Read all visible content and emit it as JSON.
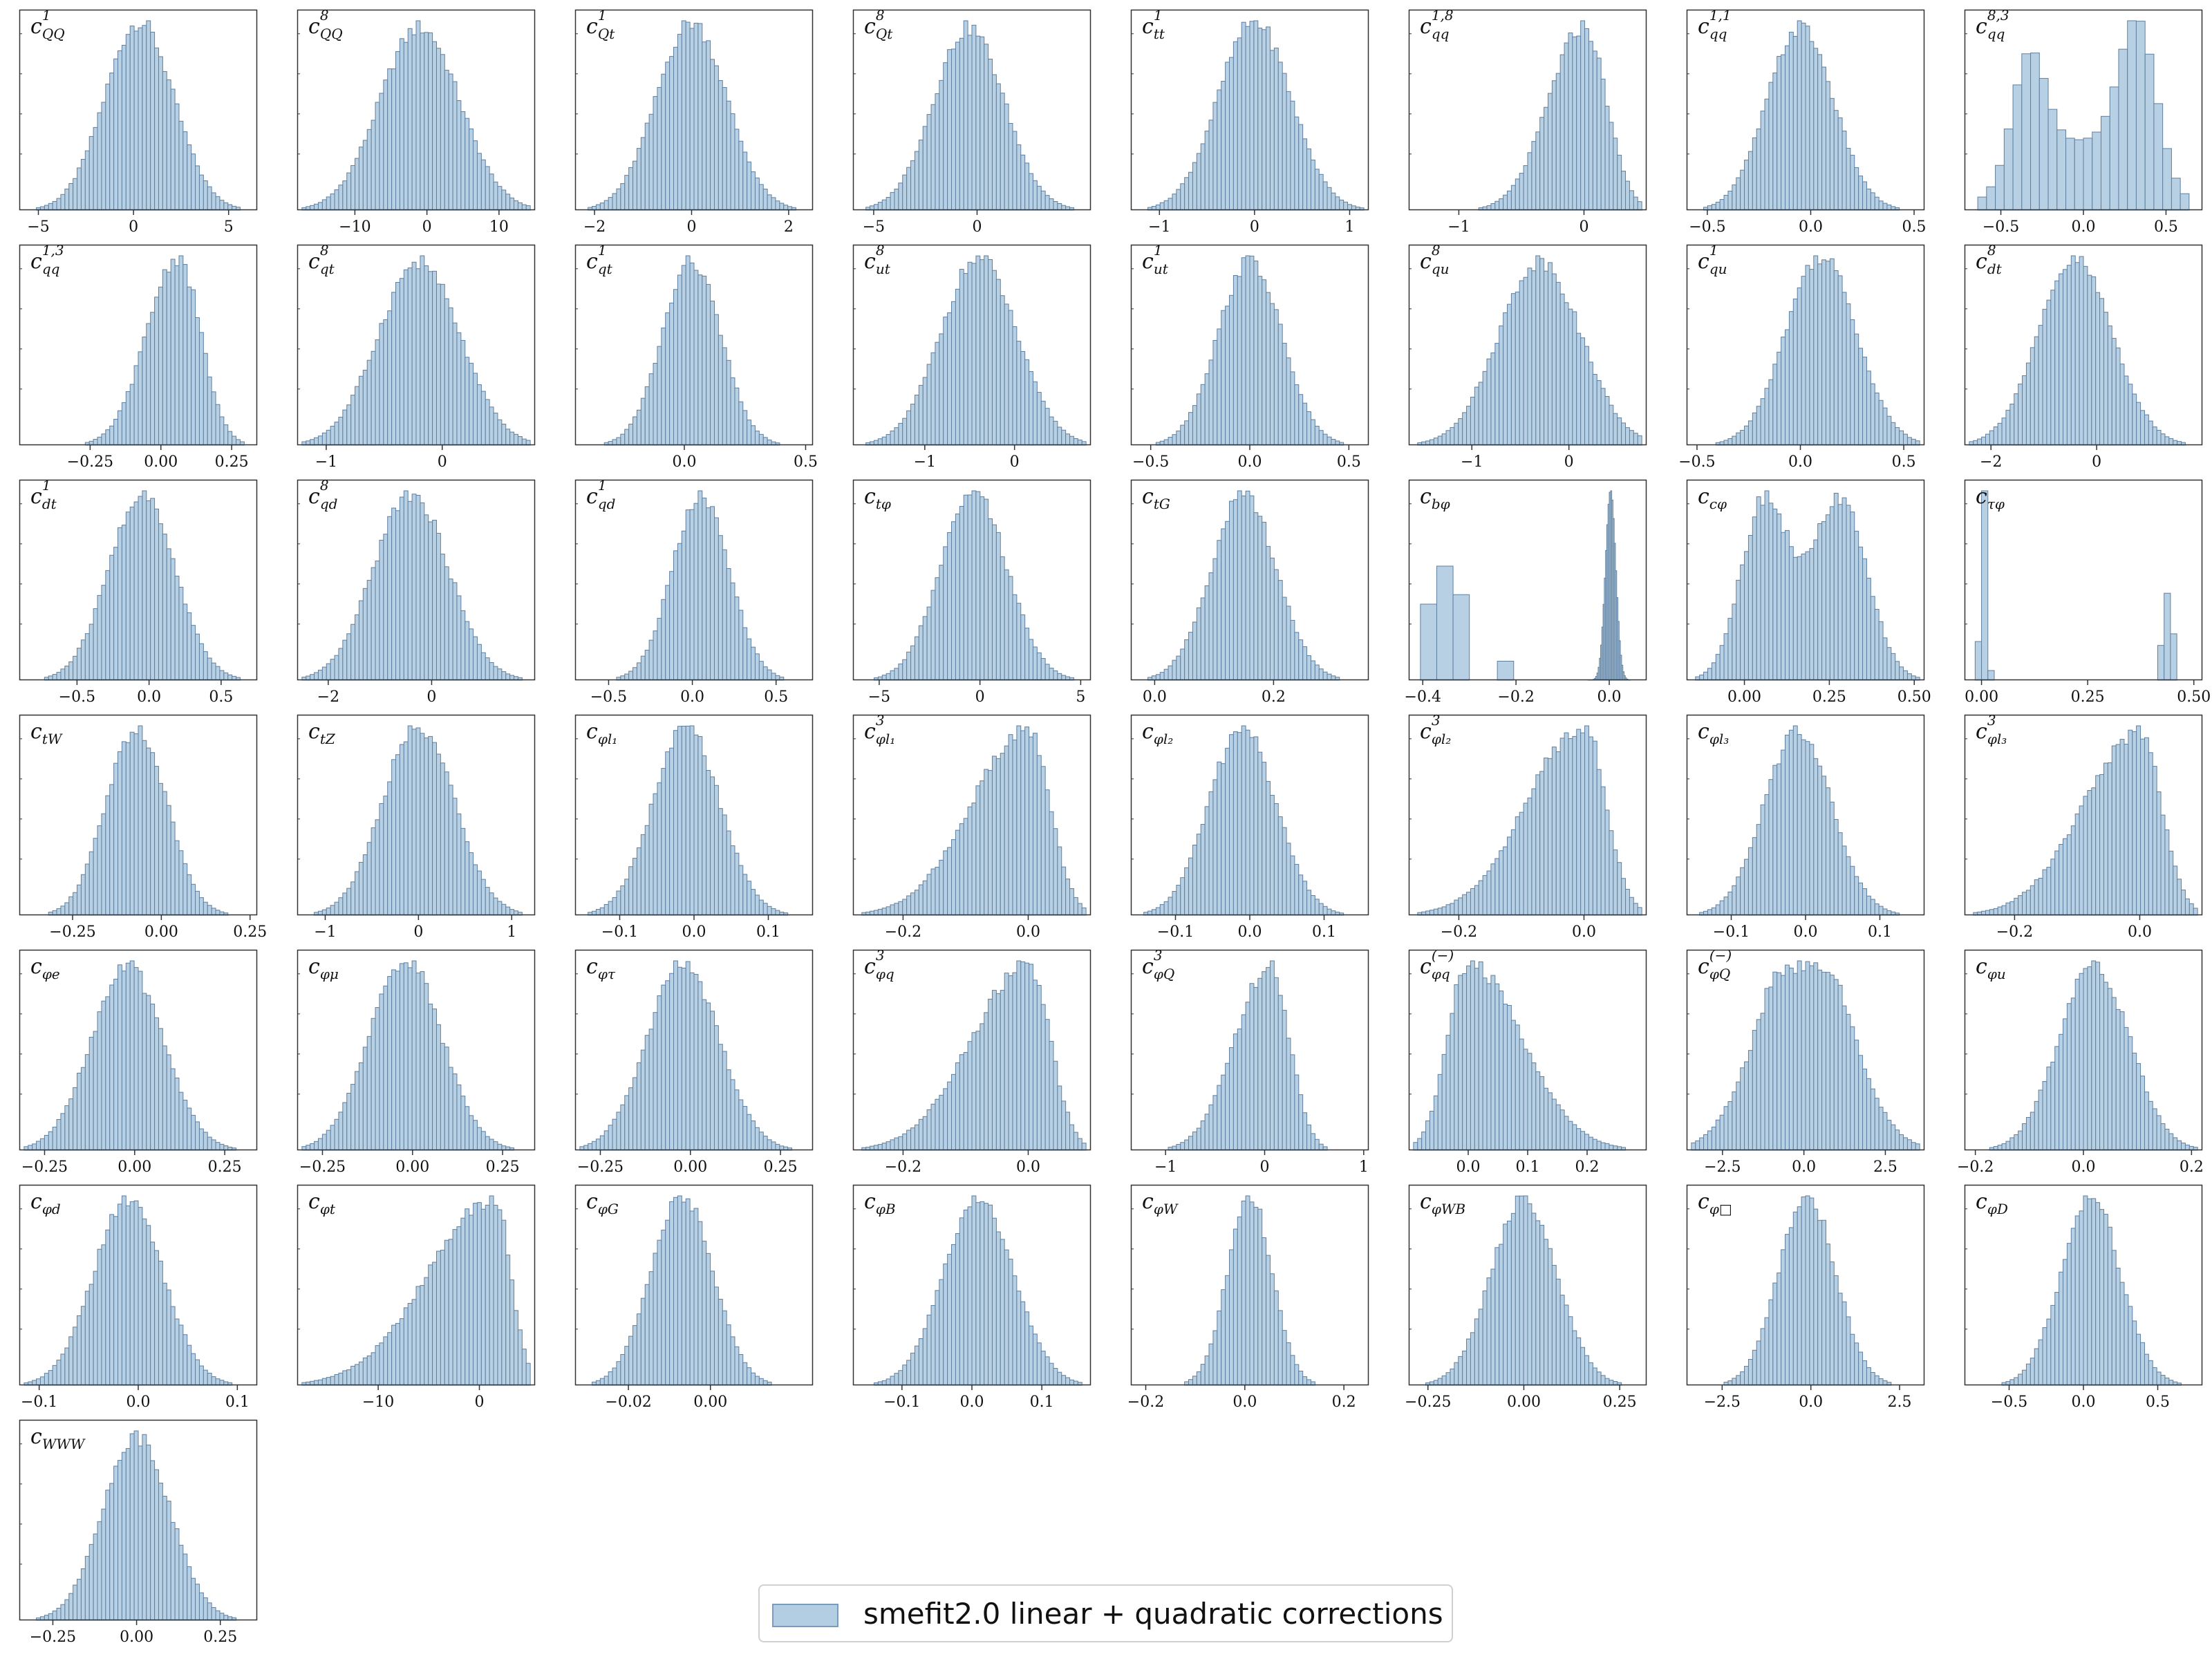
{
  "style": {
    "bar_fill": "#b3cde3",
    "bar_edge": "#5f7f9f",
    "frame": "#333333"
  },
  "legend": {
    "label": "smefit2.0 linear + quadratic corrections"
  },
  "chart_data": [
    {
      "type": "bar",
      "name": "c_{QQ}^{1}",
      "base": "c",
      "sub": "QQ",
      "sup": "1",
      "kind": "normal",
      "mean": 0.3,
      "sd": 1.8,
      "xlim": [
        -6,
        6.5
      ],
      "ticks": [
        -5,
        0,
        5
      ]
    },
    {
      "type": "bar",
      "name": "c_{QQ}^{8}",
      "base": "c",
      "sub": "QQ",
      "sup": "8",
      "kind": "normal",
      "mean": -1,
      "sd": 5.5,
      "xlim": [
        -18,
        15
      ],
      "ticks": [
        -10,
        0,
        10
      ]
    },
    {
      "type": "bar",
      "name": "c_{Qt}^{1}",
      "base": "c",
      "sub": "Qt",
      "sup": "1",
      "kind": "normal",
      "mean": 0,
      "sd": 0.72,
      "xlim": [
        -2.4,
        2.5
      ],
      "ticks": [
        -2,
        0,
        2
      ]
    },
    {
      "type": "bar",
      "name": "c_{Qt}^{8}",
      "base": "c",
      "sub": "Qt",
      "sup": "8",
      "kind": "normal",
      "mean": -0.4,
      "sd": 1.7,
      "xlim": [
        -6,
        5.5
      ],
      "ticks": [
        -5,
        0
      ]
    },
    {
      "type": "bar",
      "name": "c_{tt}^{1}",
      "base": "c",
      "sub": "tt",
      "sup": "1",
      "kind": "normal",
      "mean": 0,
      "sd": 0.38,
      "xlim": [
        -1.3,
        1.2
      ],
      "ticks": [
        -1,
        0,
        1
      ]
    },
    {
      "type": "bar",
      "name": "c_{qq}^{1,8}",
      "base": "c",
      "sub": "qq",
      "sup": "1,8",
      "kind": "skewleft",
      "mean": 0,
      "sd": 0.18,
      "lsd": 0.28,
      "xlim": [
        -1.4,
        0.5
      ],
      "ticks": [
        -1,
        0
      ]
    },
    {
      "type": "bar",
      "name": "c_{qq}^{1,1}",
      "base": "c",
      "sub": "qq",
      "sup": "1,1",
      "kind": "normal",
      "mean": -0.05,
      "sd": 0.16,
      "xlim": [
        -0.6,
        0.55
      ],
      "ticks": [
        -0.5,
        0,
        0.5
      ]
    },
    {
      "type": "bar",
      "name": "c_{qq}^{8,3}",
      "base": "c",
      "sub": "qq",
      "sup": "8,3",
      "kind": "bimodal",
      "m1": -0.33,
      "s1": 0.12,
      "m2": 0.33,
      "s2": 0.12,
      "w": 0.85,
      "xlim": [
        -0.72,
        0.72
      ],
      "ticks": [
        -0.5,
        0,
        0.5
      ]
    },
    {
      "type": "bar",
      "name": "c_{qq}^{1,3}",
      "base": "c",
      "sub": "qq",
      "sup": "1,3",
      "kind": "skewleft",
      "mean": 0.06,
      "sd": 0.08,
      "lsd": 0.11,
      "xlim": [
        -0.5,
        0.34
      ],
      "ticks": [
        -0.25,
        0,
        0.25
      ]
    },
    {
      "type": "bar",
      "name": "c_{qt}^{8}",
      "base": "c",
      "sub": "qt",
      "sup": "8",
      "kind": "normal",
      "mean": -0.2,
      "sd": 0.35,
      "xlim": [
        -1.25,
        0.8
      ],
      "ticks": [
        -1,
        0
      ]
    },
    {
      "type": "bar",
      "name": "c_{qt}^{1}",
      "base": "c",
      "sub": "qt",
      "sup": "1",
      "kind": "normal",
      "mean": 0.03,
      "sd": 0.12,
      "xlim": [
        -0.45,
        0.53
      ],
      "ticks": [
        0,
        0.5
      ]
    },
    {
      "type": "bar",
      "name": "c_{ut}^{8}",
      "base": "c",
      "sub": "ut",
      "sup": "8",
      "kind": "normal",
      "mean": -0.4,
      "sd": 0.42,
      "xlim": [
        -1.8,
        0.85
      ],
      "ticks": [
        -1,
        0
      ]
    },
    {
      "type": "bar",
      "name": "c_{ut}^{1}",
      "base": "c",
      "sub": "ut",
      "sup": "1",
      "kind": "normal",
      "mean": 0,
      "sd": 0.16,
      "xlim": [
        -0.6,
        0.6
      ],
      "ticks": [
        -0.5,
        0,
        0.5
      ]
    },
    {
      "type": "bar",
      "name": "c_{qu}^{8}",
      "base": "c",
      "sub": "qu",
      "sup": "8",
      "kind": "normal",
      "mean": -0.3,
      "sd": 0.42,
      "xlim": [
        -1.65,
        0.8
      ],
      "ticks": [
        -1,
        0
      ]
    },
    {
      "type": "bar",
      "name": "c_{qu}^{1}",
      "base": "c",
      "sub": "qu",
      "sup": "1",
      "kind": "normal",
      "mean": 0.1,
      "sd": 0.17,
      "xlim": [
        -0.55,
        0.6
      ],
      "ticks": [
        -0.5,
        0,
        0.5
      ]
    },
    {
      "type": "bar",
      "name": "c_{dt}^{8}",
      "base": "c",
      "sub": "dt",
      "sup": "8",
      "kind": "normal",
      "mean": -0.4,
      "sd": 0.7,
      "xlim": [
        -2.5,
        2.0
      ],
      "ticks": [
        -2,
        0
      ]
    },
    {
      "type": "bar",
      "name": "c_{dt}^{1}",
      "base": "c",
      "sub": "dt",
      "sup": "1",
      "kind": "normal",
      "mean": -0.05,
      "sd": 0.23,
      "xlim": [
        -0.9,
        0.75
      ],
      "ticks": [
        -0.5,
        0,
        0.5
      ]
    },
    {
      "type": "bar",
      "name": "c_{qd}^{8}",
      "base": "c",
      "sub": "qd",
      "sup": "8",
      "kind": "normal",
      "mean": -0.4,
      "sd": 0.72,
      "xlim": [
        -2.6,
        2.0
      ],
      "ticks": [
        -2,
        0
      ]
    },
    {
      "type": "bar",
      "name": "c_{qd}^{1}",
      "base": "c",
      "sub": "qd",
      "sup": "1",
      "kind": "normal",
      "mean": 0.05,
      "sd": 0.17,
      "xlim": [
        -0.7,
        0.72
      ],
      "ticks": [
        -0.5,
        0,
        0.5
      ]
    },
    {
      "type": "bar",
      "name": "c_{tφ}",
      "base": "c",
      "sub": "tφ",
      "sup": "",
      "kind": "normal",
      "mean": -0.3,
      "sd": 1.65,
      "xlim": [
        -6.3,
        5.5
      ],
      "ticks": [
        -5,
        0,
        5
      ]
    },
    {
      "type": "bar",
      "name": "c_{tG}",
      "base": "c",
      "sub": "tG",
      "sup": "",
      "kind": "normal",
      "mean": 0.15,
      "sd": 0.055,
      "xlim": [
        -0.04,
        0.36
      ],
      "ticks": [
        0,
        0.2
      ]
    },
    {
      "type": "bar",
      "name": "c_{bφ}",
      "base": "c",
      "sub": "bφ",
      "sup": "",
      "kind": "cbphi",
      "xlim": [
        -0.43,
        0.08
      ],
      "ticks": [
        -0.4,
        -0.2,
        0
      ]
    },
    {
      "type": "bar",
      "name": "c_{cφ}",
      "base": "c",
      "sub": "cφ",
      "sup": "",
      "kind": "bimodal",
      "m1": 0.06,
      "s1": 0.07,
      "m2": 0.28,
      "s2": 0.08,
      "w": 1.0,
      "xlim": [
        -0.17,
        0.53
      ],
      "ticks": [
        0,
        0.25,
        0.5
      ]
    },
    {
      "type": "bar",
      "name": "c_{τφ}",
      "base": "c",
      "sub": "τφ",
      "sup": "",
      "kind": "ctauphi",
      "xlim": [
        -0.04,
        0.52
      ],
      "ticks": [
        0,
        0.25,
        0.5
      ]
    },
    {
      "type": "bar",
      "name": "c_{tW}",
      "base": "c",
      "sub": "tW",
      "sup": "",
      "kind": "normal",
      "mean": -0.07,
      "sd": 0.085,
      "xlim": [
        -0.4,
        0.27
      ],
      "ticks": [
        -0.25,
        0,
        0.25
      ]
    },
    {
      "type": "bar",
      "name": "c_{tZ}",
      "base": "c",
      "sub": "tZ",
      "sup": "",
      "kind": "normal",
      "mean": 0,
      "sd": 0.38,
      "xlim": [
        -1.3,
        1.25
      ],
      "ticks": [
        -1,
        0,
        1
      ]
    },
    {
      "type": "bar",
      "name": "c_{φl1}",
      "base": "c",
      "sub": "φl₁",
      "sup": "",
      "kind": "normal",
      "mean": -0.01,
      "sd": 0.045,
      "xlim": [
        -0.16,
        0.16
      ],
      "ticks": [
        -0.1,
        0,
        0.1
      ]
    },
    {
      "type": "bar",
      "name": "c_{φl1}^{3}",
      "base": "c",
      "sub": "φl₁",
      "sup": "3",
      "kind": "skewleft",
      "mean": 0,
      "sd": 0.035,
      "lsd": 0.09,
      "xlim": [
        -0.28,
        0.1
      ],
      "ticks": [
        -0.2,
        0
      ]
    },
    {
      "type": "bar",
      "name": "c_{φl2}",
      "base": "c",
      "sub": "φl₂",
      "sup": "",
      "kind": "normal",
      "mean": -0.01,
      "sd": 0.045,
      "xlim": [
        -0.16,
        0.16
      ],
      "ticks": [
        -0.1,
        0,
        0.1
      ]
    },
    {
      "type": "bar",
      "name": "c_{φl2}^{3}",
      "base": "c",
      "sub": "φl₂",
      "sup": "3",
      "kind": "skewleft",
      "mean": 0,
      "sd": 0.035,
      "lsd": 0.09,
      "xlim": [
        -0.28,
        0.1
      ],
      "ticks": [
        -0.2,
        0
      ]
    },
    {
      "type": "bar",
      "name": "c_{φl3}",
      "base": "c",
      "sub": "φl₃",
      "sup": "",
      "kind": "normal",
      "mean": -0.01,
      "sd": 0.045,
      "xlim": [
        -0.16,
        0.16
      ],
      "ticks": [
        -0.1,
        0,
        0.1
      ]
    },
    {
      "type": "bar",
      "name": "c_{φl3}^{3}",
      "base": "c",
      "sub": "φl₃",
      "sup": "3",
      "kind": "skewleft",
      "mean": 0,
      "sd": 0.035,
      "lsd": 0.09,
      "xlim": [
        -0.28,
        0.1
      ],
      "ticks": [
        -0.2,
        0
      ]
    },
    {
      "type": "bar",
      "name": "c_{φe}",
      "base": "c",
      "sub": "φe",
      "sup": "",
      "kind": "normal",
      "mean": -0.02,
      "sd": 0.1,
      "xlim": [
        -0.32,
        0.34
      ],
      "ticks": [
        -0.25,
        0,
        0.25
      ]
    },
    {
      "type": "bar",
      "name": "c_{φμ}",
      "base": "c",
      "sub": "φμ",
      "sup": "",
      "kind": "normal",
      "mean": -0.02,
      "sd": 0.1,
      "xlim": [
        -0.32,
        0.34
      ],
      "ticks": [
        -0.25,
        0,
        0.25
      ]
    },
    {
      "type": "bar",
      "name": "c_{φτ}",
      "base": "c",
      "sub": "φτ",
      "sup": "",
      "kind": "normal",
      "mean": -0.02,
      "sd": 0.1,
      "xlim": [
        -0.32,
        0.34
      ],
      "ticks": [
        -0.25,
        0,
        0.25
      ]
    },
    {
      "type": "bar",
      "name": "c_{φq}^{3}",
      "base": "c",
      "sub": "φq",
      "sup": "3",
      "kind": "skewleft",
      "mean": 0,
      "sd": 0.035,
      "lsd": 0.09,
      "xlim": [
        -0.28,
        0.1
      ],
      "ticks": [
        -0.2,
        0
      ]
    },
    {
      "type": "bar",
      "name": "c_{φQ}^{3}",
      "base": "c",
      "sub": "φQ",
      "sup": "3",
      "kind": "skewleft",
      "mean": 0.05,
      "sd": 0.2,
      "lsd": 0.35,
      "xlim": [
        -1.35,
        1.05
      ],
      "ticks": [
        -1,
        0,
        1
      ]
    },
    {
      "type": "bar",
      "name": "c_{φq}^{(−)}",
      "base": "c",
      "sub": "φq",
      "sup": "(−)",
      "kind": "skewright",
      "mean": 0.0,
      "sd": 0.035,
      "rsd": 0.09,
      "xlim": [
        -0.1,
        0.3
      ],
      "ticks": [
        0,
        0.1,
        0.2
      ]
    },
    {
      "type": "bar",
      "name": "c_{φQ}^{(−)}",
      "base": "c",
      "sub": "φQ",
      "sup": "(−)",
      "kind": "flat",
      "mean": 0,
      "sd": 1.3,
      "xlim": [
        -3.6,
        3.7
      ],
      "ticks": [
        -2.5,
        0,
        2.5
      ]
    },
    {
      "type": "bar",
      "name": "c_{φu}",
      "base": "c",
      "sub": "φu",
      "sup": "",
      "kind": "normal",
      "mean": 0.02,
      "sd": 0.065,
      "xlim": [
        -0.22,
        0.22
      ],
      "ticks": [
        -0.2,
        0,
        0.2
      ]
    },
    {
      "type": "bar",
      "name": "c_{φd}",
      "base": "c",
      "sub": "φd",
      "sup": "",
      "kind": "normal",
      "mean": -0.01,
      "sd": 0.035,
      "xlim": [
        -0.12,
        0.12
      ],
      "ticks": [
        -0.1,
        0,
        0.1
      ]
    },
    {
      "type": "bar",
      "name": "c_{φt}",
      "base": "c",
      "sub": "φt",
      "sup": "",
      "kind": "skewleft",
      "mean": 1.5,
      "sd": 1.6,
      "lsd": 6.5,
      "xlim": [
        -18,
        5.5
      ],
      "ticks": [
        -10,
        0
      ]
    },
    {
      "type": "bar",
      "name": "c_{φG}",
      "base": "c",
      "sub": "φG",
      "sup": "",
      "kind": "normal",
      "mean": -0.007,
      "sd": 0.0075,
      "xlim": [
        -0.033,
        0.025
      ],
      "ticks": [
        -0.02,
        0
      ]
    },
    {
      "type": "bar",
      "name": "c_{φB}",
      "base": "c",
      "sub": "φB",
      "sup": "",
      "kind": "normal",
      "mean": 0.01,
      "sd": 0.05,
      "xlim": [
        -0.17,
        0.17
      ],
      "ticks": [
        -0.1,
        0,
        0.1
      ]
    },
    {
      "type": "bar",
      "name": "c_{φW}",
      "base": "c",
      "sub": "φW",
      "sup": "",
      "kind": "normal",
      "mean": 0.01,
      "sd": 0.045,
      "xlim": [
        -0.23,
        0.25
      ],
      "ticks": [
        -0.2,
        0,
        0.2
      ]
    },
    {
      "type": "bar",
      "name": "c_{φWB}",
      "base": "c",
      "sub": "φWB",
      "sup": "",
      "kind": "normal",
      "mean": 0,
      "sd": 0.085,
      "xlim": [
        -0.3,
        0.32
      ],
      "ticks": [
        -0.25,
        0,
        0.25
      ]
    },
    {
      "type": "bar",
      "name": "c_{φ□}",
      "base": "c",
      "sub": "φ□",
      "sup": "",
      "kind": "normal",
      "mean": -0.1,
      "sd": 0.8,
      "xlim": [
        -3.5,
        3.2
      ],
      "ticks": [
        -2.5,
        0,
        2.5
      ]
    },
    {
      "type": "bar",
      "name": "c_{φD}",
      "base": "c",
      "sub": "φD",
      "sup": "",
      "kind": "normal",
      "mean": 0.05,
      "sd": 0.2,
      "xlim": [
        -0.8,
        0.8
      ],
      "ticks": [
        -0.5,
        0,
        0.5
      ]
    },
    {
      "type": "bar",
      "name": "c_{WWW}",
      "base": "c",
      "sub": "WWW",
      "sup": "",
      "kind": "normal",
      "mean": 0,
      "sd": 0.1,
      "xlim": [
        -0.35,
        0.36
      ],
      "ticks": [
        -0.25,
        0,
        0.25
      ]
    }
  ]
}
